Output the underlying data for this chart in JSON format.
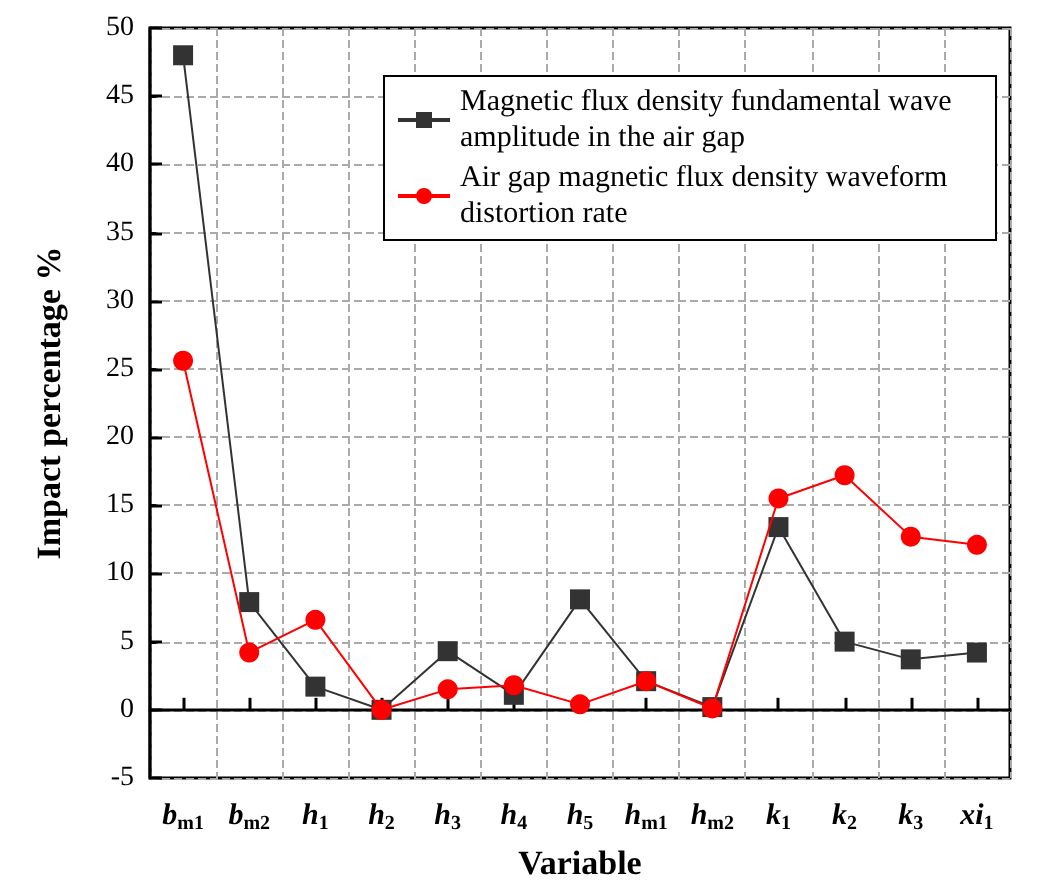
{
  "chart_data": {
    "type": "line",
    "xlabel": "Variable",
    "ylabel": "Impact percentage %",
    "categories": [
      "b$_{m1}$",
      "b$_{m2}$",
      "h$_{1}$",
      "h$_{2}$",
      "h$_{3}$",
      "h$_{4}$",
      "h$_{5}$",
      "h$_{m1}$",
      "h$_{m2}$",
      "k$_{1}$",
      "k$_{2}$",
      "k$_{3}$",
      "xi$_{1}$"
    ],
    "series": [
      {
        "name": "Magnetic flux density fundamental wave amplitude in the air gap",
        "color": "#333333",
        "marker": "square",
        "values": [
          48,
          7.9,
          1.7,
          0,
          4.3,
          1.1,
          8.1,
          2.1,
          0.2,
          13.4,
          5.0,
          3.7,
          4.2
        ]
      },
      {
        "name": "Air gap magnetic flux density waveform distortion rate",
        "color": "#ff0000",
        "marker": "circle",
        "values": [
          25.6,
          4.2,
          6.6,
          0,
          1.5,
          1.8,
          0.4,
          2.1,
          0.1,
          15.5,
          17.2,
          12.7,
          12.1
        ]
      }
    ],
    "ylim": [
      -5,
      50
    ],
    "yticks": [
      -5,
      0,
      5,
      10,
      15,
      20,
      25,
      30,
      35,
      40,
      45,
      50
    ],
    "grid": true,
    "legend": "top right"
  }
}
